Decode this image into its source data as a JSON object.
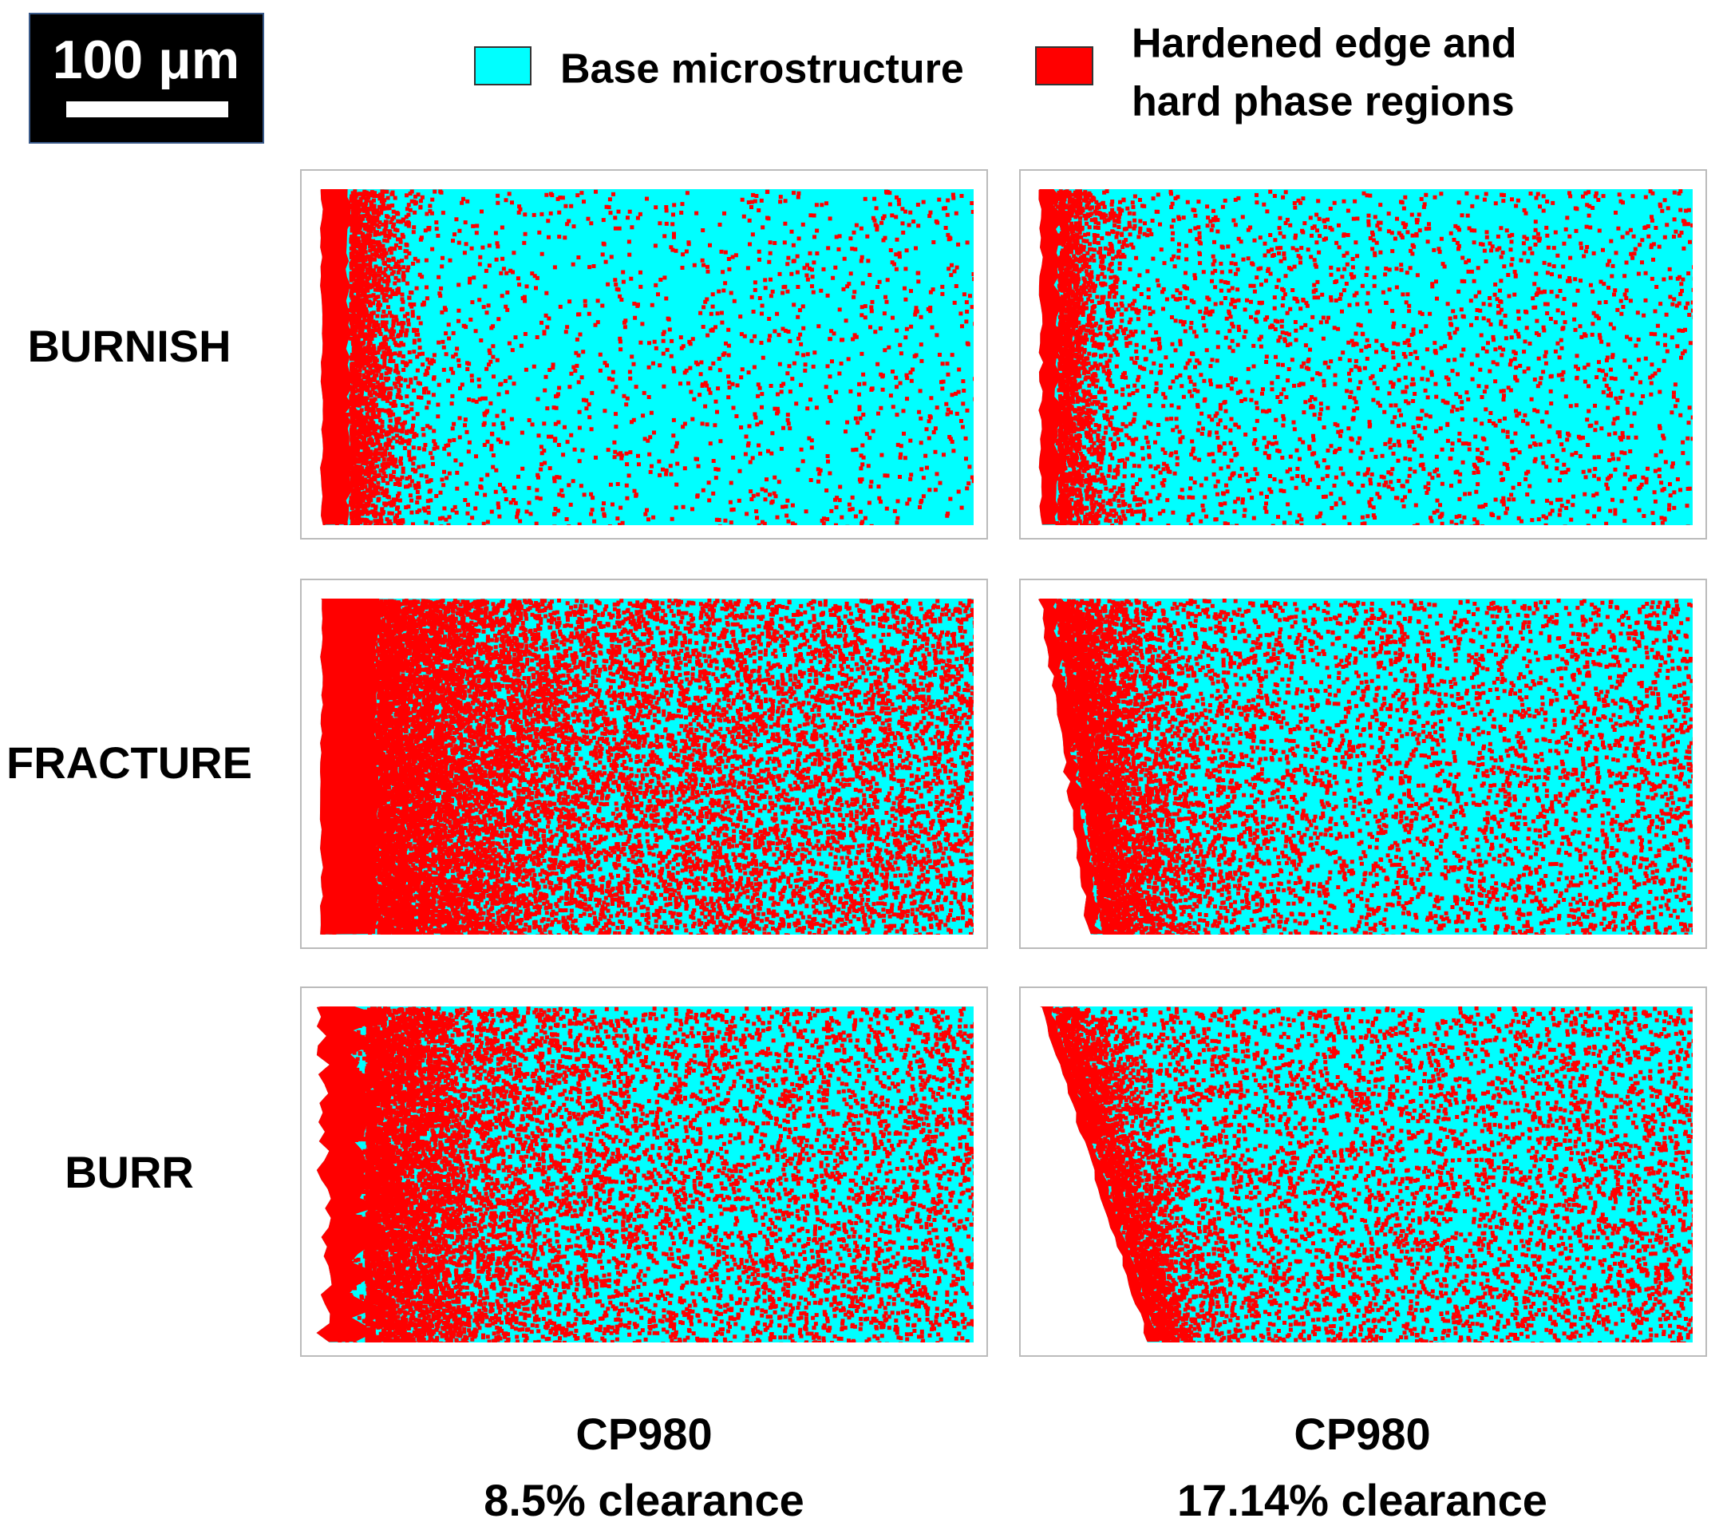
{
  "scale_bar": "100 μm",
  "legend": [
    {
      "label": "Base microstructure",
      "color": "#00ffff"
    },
    {
      "label": [
        "Hardened edge and",
        "hard phase regions"
      ],
      "color": "#ff0000"
    }
  ],
  "rows": [
    "BURNISH",
    "FRACTURE",
    "BURR"
  ],
  "columns": [
    {
      "line1": "CP980",
      "line2": "8.5% clearance"
    },
    {
      "line1": "CP980",
      "line2": "17.14% clearance"
    }
  ]
}
